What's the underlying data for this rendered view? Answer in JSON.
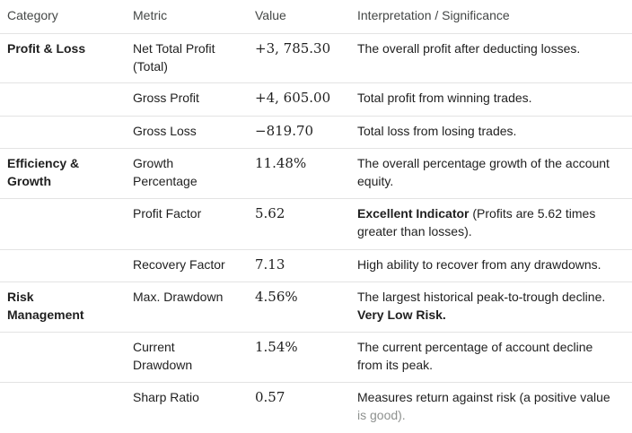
{
  "headers": {
    "category": "Category",
    "metric": "Metric",
    "value": "Value",
    "interpretation": "Interpretation / Significance"
  },
  "rows": [
    {
      "category": "Profit & Loss",
      "metric": "Net Total Profit (Total)",
      "value": "+3, 785.30",
      "interpretation": "The overall profit after deducting losses."
    },
    {
      "category": "",
      "metric": "Gross Profit",
      "value": "+4, 605.00",
      "interpretation": "Total profit from winning trades."
    },
    {
      "category": "",
      "metric": "Gross Loss",
      "value": "−819.70",
      "interpretation": "Total loss from losing trades."
    },
    {
      "category": "Efficiency & Growth",
      "metric": "Growth Percentage",
      "value": "11.48%",
      "interpretation": "The overall percentage growth of the account equity."
    },
    {
      "category": "",
      "metric": "Profit Factor",
      "value": "5.62",
      "interpretation_bold": "Excellent Indicator",
      "interpretation": "(Profits are 5.62 times greater than losses)."
    },
    {
      "category": "",
      "metric": "Recovery Factor",
      "value": "7.13",
      "interpretation": "High ability to recover from any drawdowns."
    },
    {
      "category": "Risk Management",
      "metric": "Max. Drawdown",
      "value": "4.56%",
      "interpretation": "The largest historical peak-to-trough decline.",
      "interpretation_bold": "Very Low Risk."
    },
    {
      "category": "",
      "metric": "Current Drawdown",
      "value": "1.54%",
      "interpretation": "The current percentage of account decline from its peak."
    },
    {
      "category": "",
      "metric": "Sharp Ratio",
      "value": "0.57",
      "interpretation": "Measures return against risk (a positive value",
      "interpretation_tail": "is good)."
    }
  ]
}
